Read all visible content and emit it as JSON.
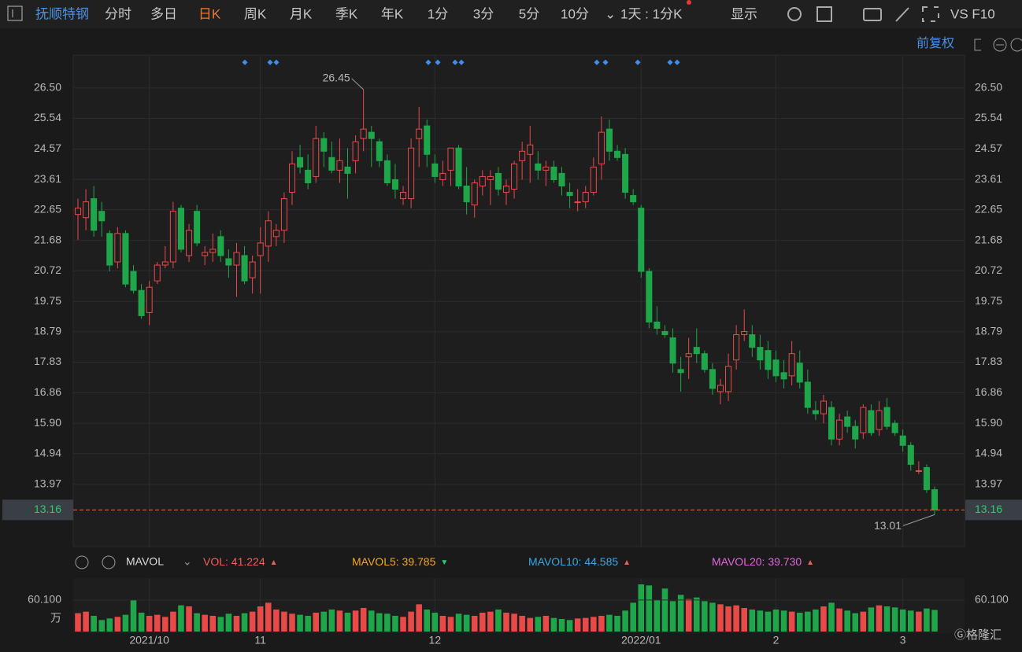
{
  "toolbar": {
    "stock": "抚顺特钢",
    "tabs": [
      "分时",
      "多日",
      "日K",
      "周K",
      "月K",
      "季K",
      "年K",
      "1分",
      "3分",
      "5分",
      "10分"
    ],
    "active": 2,
    "period": "1天 : 1分K",
    "display": "显示",
    "extra": "VS F10",
    "adjust": "前复权"
  },
  "chart_data": [
    {
      "type": "candlestick",
      "up_color": "#e84a4a",
      "down_color": "#1fa64a",
      "grid": true,
      "categories": [
        null,
        null,
        null,
        null,
        null,
        null,
        null,
        null,
        null,
        "2021/10",
        null,
        null,
        null,
        null,
        null,
        null,
        null,
        null,
        null,
        null,
        null,
        null,
        null,
        "11",
        null,
        null,
        null,
        null,
        null,
        null,
        null,
        null,
        null,
        null,
        null,
        null,
        null,
        null,
        null,
        null,
        null,
        null,
        null,
        null,
        null,
        "12",
        null,
        null,
        null,
        null,
        null,
        null,
        null,
        null,
        null,
        null,
        null,
        null,
        null,
        null,
        null,
        null,
        null,
        null,
        null,
        null,
        null,
        null,
        null,
        null,
        null,
        "2022/01",
        null,
        null,
        null,
        null,
        null,
        null,
        null,
        null,
        null,
        null,
        null,
        null,
        null,
        null,
        null,
        null,
        "2",
        null,
        null,
        null,
        null,
        null,
        null,
        null,
        null,
        null,
        null,
        null,
        null,
        null,
        null,
        null,
        "3",
        null,
        null,
        null,
        null
      ],
      "open": [
        22.5,
        22.4,
        23.0,
        22.6,
        21.9,
        21.0,
        21.9,
        20.7,
        20.1,
        19.4,
        20.4,
        20.9,
        21.0,
        22.7,
        21.2,
        22.6,
        21.2,
        21.3,
        21.8,
        21.1,
        20.9,
        21.2,
        20.5,
        21.2,
        21.5,
        21.8,
        22.0,
        23.2,
        24.3,
        23.9,
        23.7,
        24.9,
        24.3,
        23.9,
        24.0,
        24.2,
        24.9,
        25.1,
        24.8,
        24.2,
        23.6,
        23.0,
        23.0,
        24.9,
        25.3,
        24.1,
        23.6,
        23.9,
        24.6,
        23.4,
        22.8,
        23.4,
        23.6,
        23.8,
        23.2,
        23.3,
        24.2,
        24.4,
        24.1,
        23.9,
        24.0,
        23.8,
        23.2,
        22.9,
        22.9,
        23.2,
        24.1,
        25.2,
        24.5,
        24.4,
        23.1,
        22.7,
        20.7,
        19.1,
        18.8,
        18.6,
        17.6,
        18.0,
        18.3,
        18.1,
        17.6,
        16.9,
        16.9,
        17.9,
        18.7,
        18.7,
        18.3,
        18.2,
        17.9,
        17.5,
        17.4,
        17.8,
        17.2,
        16.3,
        16.2,
        16.4,
        15.4,
        16.1,
        15.8,
        15.6,
        16.3,
        15.7,
        16.4,
        15.9,
        15.5,
        15.2,
        14.4,
        14.5,
        13.8
      ],
      "high": [
        23.0,
        23.3,
        23.4,
        22.9,
        22.0,
        22.1,
        22.0,
        20.9,
        20.3,
        20.4,
        21.0,
        21.5,
        22.9,
        22.8,
        22.2,
        22.8,
        21.5,
        21.9,
        22.0,
        21.4,
        21.6,
        21.5,
        21.2,
        22.1,
        22.6,
        22.2,
        23.2,
        24.5,
        24.7,
        24.4,
        25.3,
        25.1,
        24.8,
        24.9,
        24.6,
        25.0,
        26.45,
        25.3,
        24.9,
        24.4,
        24.1,
        23.4,
        24.9,
        25.9,
        25.5,
        24.4,
        24.2,
        24.6,
        24.7,
        24.0,
        23.6,
        23.9,
        23.9,
        24.0,
        23.6,
        24.2,
        24.8,
        25.3,
        24.5,
        24.2,
        24.2,
        24.0,
        23.5,
        23.3,
        23.4,
        24.3,
        25.6,
        25.5,
        24.7,
        24.6,
        23.3,
        22.8,
        20.8,
        19.6,
        19.0,
        18.9,
        18.0,
        18.6,
        18.9,
        18.2,
        17.8,
        17.3,
        18.1,
        19.0,
        19.5,
        19.0,
        18.7,
        18.5,
        18.2,
        17.9,
        18.5,
        18.2,
        17.6,
        16.6,
        16.8,
        16.6,
        16.2,
        16.3,
        16.0,
        16.5,
        16.5,
        16.6,
        16.7,
        16.0,
        15.7,
        15.3,
        14.7,
        14.6,
        13.9
      ],
      "low": [
        21.7,
        22.0,
        21.8,
        21.8,
        20.7,
        20.8,
        20.2,
        20.0,
        19.2,
        19.0,
        20.3,
        20.8,
        20.8,
        21.3,
        21.0,
        21.5,
        20.9,
        21.0,
        21.0,
        20.5,
        19.9,
        20.3,
        20.0,
        20.0,
        21.0,
        21.5,
        21.6,
        22.8,
        23.8,
        23.3,
        23.5,
        24.0,
        23.8,
        23.5,
        23.0,
        23.8,
        24.5,
        24.0,
        24.0,
        23.4,
        23.0,
        22.8,
        22.7,
        24.0,
        24.0,
        23.5,
        23.4,
        23.4,
        23.3,
        22.5,
        22.4,
        23.1,
        22.8,
        23.1,
        22.8,
        23.0,
        23.6,
        23.5,
        23.6,
        23.4,
        23.5,
        23.1,
        22.7,
        22.6,
        22.7,
        23.1,
        23.6,
        24.2,
        24.2,
        23.0,
        22.8,
        20.5,
        18.9,
        18.7,
        18.6,
        17.5,
        16.9,
        17.3,
        17.8,
        17.5,
        16.8,
        16.5,
        16.6,
        17.6,
        18.5,
        18.0,
        17.6,
        17.3,
        17.2,
        17.0,
        17.1,
        17.0,
        16.2,
        16.0,
        15.9,
        15.2,
        15.2,
        15.6,
        15.1,
        15.4,
        15.5,
        15.5,
        15.7,
        15.5,
        15.0,
        14.4,
        14.3,
        13.7,
        13.01
      ],
      "close": [
        22.7,
        22.9,
        22.0,
        22.3,
        20.9,
        21.9,
        20.3,
        20.1,
        19.3,
        20.2,
        20.9,
        21.0,
        22.6,
        21.4,
        22.0,
        21.6,
        21.3,
        21.4,
        21.2,
        20.9,
        21.3,
        20.4,
        21.0,
        21.6,
        22.3,
        22.0,
        23.0,
        24.1,
        24.0,
        23.5,
        24.9,
        24.5,
        23.9,
        24.2,
        23.8,
        24.8,
        25.2,
        24.9,
        24.2,
        23.5,
        23.3,
        23.2,
        24.6,
        25.2,
        24.4,
        23.7,
        23.8,
        24.6,
        23.4,
        22.9,
        23.5,
        23.7,
        23.7,
        23.3,
        23.4,
        24.1,
        24.5,
        24.7,
        23.9,
        24.0,
        23.6,
        23.4,
        23.1,
        22.9,
        23.2,
        24.0,
        25.1,
        24.5,
        24.3,
        23.2,
        22.9,
        20.7,
        19.1,
        18.9,
        18.7,
        17.8,
        17.5,
        18.1,
        18.1,
        17.6,
        17.0,
        17.1,
        17.7,
        18.7,
        18.8,
        18.3,
        17.9,
        17.6,
        17.4,
        17.3,
        18.1,
        17.2,
        16.4,
        16.2,
        16.6,
        15.4,
        16.0,
        15.8,
        15.4,
        16.4,
        15.6,
        16.3,
        15.8,
        15.6,
        15.2,
        14.6,
        14.4,
        13.8,
        13.16
      ],
      "ylim": [
        12.0,
        27.54
      ],
      "yticks": [
        {
          "value": 26.5,
          "label": "26.50"
        },
        25.54,
        24.57,
        23.61,
        22.65,
        21.68,
        20.72,
        19.75,
        18.79,
        17.83,
        16.86,
        {
          "value": 15.9,
          "label": "15.90"
        },
        14.94,
        13.97
      ]
    },
    {
      "type": "bar",
      "unit": "万",
      "indicator": "MAVOL",
      "values": [
        35,
        38,
        30,
        22,
        25,
        28,
        32,
        60,
        36,
        30,
        32,
        28,
        38,
        50,
        48,
        35,
        32,
        30,
        28,
        34,
        30,
        35,
        38,
        48,
        55,
        42,
        38,
        34,
        32,
        30,
        36,
        38,
        42,
        40,
        36,
        40,
        45,
        40,
        35,
        34,
        30,
        28,
        38,
        52,
        42,
        36,
        30,
        28,
        34,
        32,
        30,
        36,
        38,
        42,
        36,
        34,
        30,
        26,
        28,
        30,
        26,
        24,
        22,
        25,
        26,
        28,
        30,
        32,
        30,
        40,
        55,
        90,
        88,
        60,
        82,
        58,
        70,
        62,
        65,
        58,
        55,
        52,
        48,
        50,
        45,
        42,
        40,
        38,
        42,
        40,
        38,
        36,
        38,
        42,
        48,
        55,
        44,
        40,
        35,
        38,
        46,
        50,
        48,
        46,
        42,
        40,
        38,
        44,
        41.224
      ],
      "ylim": [
        0,
        99
      ],
      "yticks": [
        {
          "value": 60.1,
          "label": "60.100"
        }
      ],
      "legend": {
        "names": [
          "VOL",
          "MAVOL5",
          "MAVOL10",
          "MAVOL20"
        ],
        "values": [
          41.224,
          39.785,
          44.585,
          39.73
        ],
        "value_labels": [
          "41.224",
          "39.785",
          "44.585",
          "39.730"
        ],
        "colors": [
          "#f0605a",
          "#f5a623",
          "#3ba6e6",
          "#e066e0"
        ],
        "trend": [
          "up",
          "down",
          "up",
          "up"
        ]
      }
    }
  ]
}
